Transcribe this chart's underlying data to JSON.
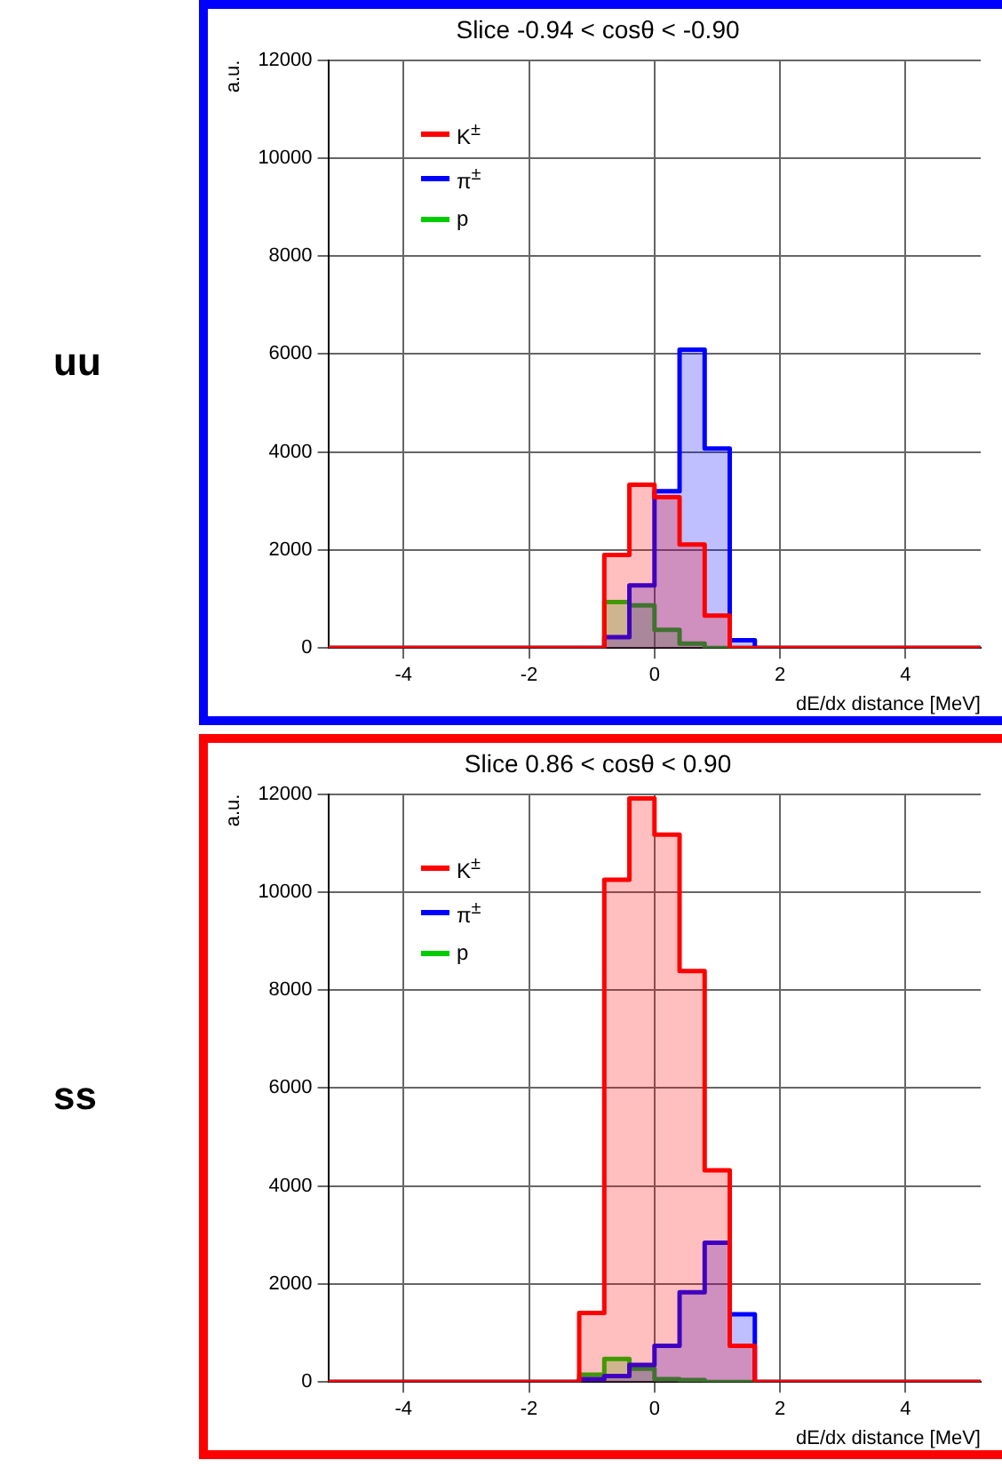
{
  "chart_data": [
    {
      "type": "histogram",
      "title": "Slice -0.94 < cosθ < -0.90",
      "xlabel": "dE/dx distance [MeV]",
      "ylabel": "a.u.",
      "annotations": [
        "uu"
      ],
      "bins": [
        -5.2,
        -4.8,
        -4.4,
        -4.0,
        -3.6,
        -3.2,
        -2.8,
        -2.4,
        -2.0,
        -1.6,
        -1.2,
        -0.8,
        -0.4,
        0.0,
        0.4,
        0.8,
        1.2,
        1.6,
        2.0,
        2.4,
        2.8,
        3.2,
        3.6,
        4.0,
        4.4,
        4.8,
        5.2
      ],
      "series": [
        {
          "name": "K$^{±}$",
          "color": "#ff0000",
          "values": [
            0,
            0,
            0,
            0,
            0,
            0,
            0,
            0,
            0,
            0,
            0,
            1900,
            3330,
            3080,
            2110,
            660,
            0,
            0,
            0,
            0,
            0,
            0,
            0,
            0,
            0,
            0
          ]
        },
        {
          "name": "π$^{±}$",
          "color": "#0000ff",
          "values": [
            0,
            0,
            0,
            0,
            0,
            0,
            0,
            0,
            0,
            0,
            0,
            220,
            1280,
            3200,
            6090,
            4070,
            160,
            0,
            0,
            0,
            0,
            0,
            0,
            0,
            0,
            0
          ]
        },
        {
          "name": "p",
          "color": "#00cc00",
          "values": [
            0,
            0,
            0,
            0,
            0,
            0,
            0,
            0,
            0,
            0,
            0,
            940,
            870,
            370,
            90,
            0,
            0,
            0,
            0,
            0,
            0,
            0,
            0,
            0,
            0,
            0
          ]
        }
      ],
      "xlim": [
        -5.2,
        5.2
      ],
      "xticks": [
        -4,
        -2,
        0,
        2,
        4
      ],
      "ylim": [
        0,
        12000
      ],
      "yticks": [
        0,
        2000,
        4000,
        6000,
        8000,
        10000,
        12000
      ],
      "grid": true,
      "legend": "top left"
    },
    {
      "type": "histogram",
      "title": "Slice 0.86 < cosθ < 0.90",
      "xlabel": "dE/dx distance [MeV]",
      "ylabel": "a.u.",
      "annotations": [
        "ss"
      ],
      "bins": [
        -5.2,
        -4.8,
        -4.4,
        -4.0,
        -3.6,
        -3.2,
        -2.8,
        -2.4,
        -2.0,
        -1.6,
        -1.2,
        -0.8,
        -0.4,
        0.0,
        0.4,
        0.8,
        1.2,
        1.6,
        2.0,
        2.4,
        2.8,
        3.2,
        3.6,
        4.0,
        4.4,
        4.8,
        5.2
      ],
      "series": [
        {
          "name": "K$^{±}$",
          "color": "#ff0000",
          "values": [
            0,
            0,
            0,
            0,
            0,
            0,
            0,
            0,
            0,
            0,
            1410,
            10250,
            11910,
            11170,
            8390,
            4320,
            740,
            0,
            0,
            0,
            0,
            0,
            0,
            0,
            0,
            0
          ]
        },
        {
          "name": "π$^{±}$",
          "color": "#0000ff",
          "values": [
            0,
            0,
            0,
            0,
            0,
            0,
            0,
            0,
            0,
            0,
            60,
            120,
            350,
            740,
            1830,
            2840,
            1380,
            0,
            0,
            0,
            0,
            0,
            0,
            0,
            0,
            0
          ]
        },
        {
          "name": "p",
          "color": "#00cc00",
          "values": [
            0,
            0,
            0,
            0,
            0,
            0,
            0,
            0,
            0,
            0,
            150,
            470,
            270,
            60,
            40,
            0,
            0,
            0,
            0,
            0,
            0,
            0,
            0,
            0,
            0,
            0
          ]
        }
      ],
      "xlim": [
        -5.2,
        5.2
      ],
      "xticks": [
        -4,
        -2,
        0,
        2,
        4
      ],
      "ylim": [
        0,
        12000
      ],
      "yticks": [
        0,
        2000,
        4000,
        6000,
        8000,
        10000,
        12000
      ],
      "grid": true,
      "legend": "top left"
    }
  ]
}
